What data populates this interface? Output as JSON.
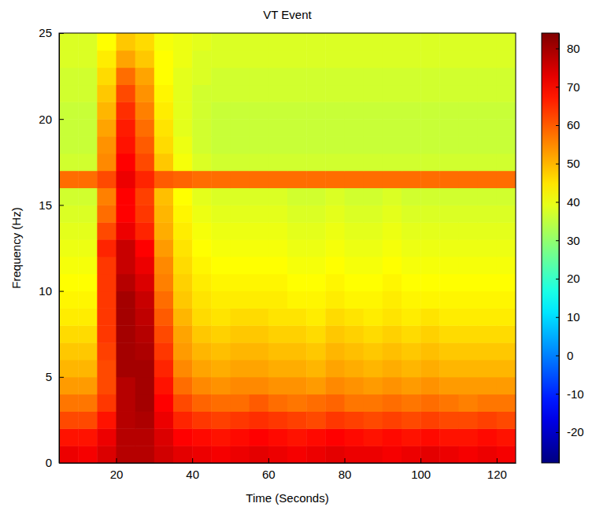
{
  "chart_data": {
    "type": "heatmap",
    "title": "VT Event",
    "x_label": "Time (Seconds)",
    "y_label": "Frequency (Hz)",
    "xlim": [
      5,
      125
    ],
    "ylim": [
      0,
      25
    ],
    "xticks": [
      20,
      40,
      60,
      80,
      100,
      120
    ],
    "yticks": [
      0,
      5,
      10,
      15,
      20,
      25
    ],
    "x": [
      7.5,
      12.5,
      17.5,
      22.5,
      27.5,
      32.5,
      37.5,
      42.5,
      47.5,
      52.5,
      57.5,
      62.5,
      67.5,
      72.5,
      77.5,
      82.5,
      87.5,
      92.5,
      97.5,
      102.5,
      107.5,
      112.5,
      117.5,
      122.5
    ],
    "y": [
      0.5,
      1.5,
      2.5,
      3.5,
      4.5,
      5.5,
      6.5,
      7.5,
      8.5,
      9.5,
      10.5,
      11.5,
      12.5,
      13.5,
      14.5,
      15.5,
      16.5,
      17.5,
      18.5,
      19.5,
      20.5,
      21.5,
      22.5,
      23.5,
      24.5
    ],
    "z": [
      [
        72,
        71,
        74,
        78,
        78,
        75,
        73,
        72,
        71,
        72,
        73,
        72,
        71,
        72,
        73,
        72,
        72,
        71,
        72,
        73,
        72,
        71,
        72,
        71
      ],
      [
        68,
        68,
        72,
        78,
        78,
        74,
        70,
        69,
        68,
        69,
        70,
        69,
        68,
        69,
        70,
        69,
        68,
        69,
        68,
        69,
        68,
        68,
        69,
        68
      ],
      [
        62,
        62,
        68,
        78,
        79,
        72,
        66,
        64,
        63,
        64,
        65,
        64,
        63,
        62,
        64,
        63,
        62,
        63,
        62,
        63,
        62,
        62,
        63,
        62
      ],
      [
        57,
        57,
        64,
        78,
        80,
        70,
        62,
        59,
        58,
        58,
        60,
        58,
        57,
        58,
        59,
        57,
        57,
        58,
        57,
        58,
        57,
        56,
        57,
        57
      ],
      [
        53,
        53,
        62,
        78,
        80,
        68,
        58,
        55,
        54,
        55,
        55,
        54,
        54,
        53,
        55,
        54,
        53,
        54,
        53,
        54,
        53,
        53,
        53,
        53
      ],
      [
        50,
        50,
        62,
        80,
        80,
        66,
        55,
        52,
        51,
        52,
        52,
        51,
        51,
        50,
        52,
        51,
        50,
        51,
        50,
        51,
        50,
        50,
        50,
        50
      ],
      [
        48,
        48,
        63,
        80,
        79,
        64,
        53,
        50,
        49,
        50,
        50,
        49,
        49,
        48,
        50,
        49,
        48,
        49,
        48,
        49,
        48,
        48,
        48,
        48
      ],
      [
        46,
        46,
        64,
        80,
        78,
        62,
        52,
        48,
        47,
        48,
        48,
        47,
        47,
        46,
        48,
        47,
        46,
        47,
        46,
        47,
        46,
        46,
        46,
        46
      ],
      [
        44,
        44,
        64,
        80,
        77,
        60,
        50,
        46,
        45,
        46,
        46,
        45,
        45,
        44,
        46,
        45,
        44,
        45,
        44,
        45,
        44,
        44,
        44,
        44
      ],
      [
        43,
        43,
        64,
        80,
        76,
        58,
        48,
        45,
        44,
        44,
        44,
        44,
        43,
        43,
        44,
        43,
        43,
        44,
        43,
        43,
        43,
        43,
        43,
        43
      ],
      [
        42,
        42,
        64,
        78,
        74,
        56,
        47,
        44,
        43,
        43,
        43,
        43,
        42,
        42,
        43,
        42,
        42,
        43,
        42,
        42,
        42,
        42,
        42,
        42
      ],
      [
        41,
        41,
        64,
        76,
        72,
        55,
        46,
        43,
        42,
        42,
        42,
        42,
        41,
        41,
        42,
        41,
        41,
        42,
        41,
        41,
        41,
        41,
        41,
        41
      ],
      [
        40,
        40,
        66,
        76,
        70,
        53,
        45,
        42,
        41,
        41,
        41,
        41,
        40,
        40,
        41,
        40,
        40,
        41,
        40,
        40,
        40,
        40,
        40,
        40
      ],
      [
        39,
        39,
        62,
        72,
        66,
        51,
        44,
        41,
        40,
        40,
        40,
        40,
        39,
        39,
        40,
        39,
        39,
        40,
        39,
        39,
        39,
        39,
        39,
        39
      ],
      [
        38,
        38,
        58,
        70,
        64,
        50,
        43,
        40,
        39,
        39,
        39,
        39,
        38,
        38,
        39,
        38,
        38,
        39,
        38,
        38,
        38,
        38,
        38,
        38
      ],
      [
        37,
        37,
        56,
        70,
        63,
        49,
        42,
        39,
        38,
        38,
        38,
        38,
        37,
        37,
        38,
        37,
        37,
        38,
        37,
        37,
        37,
        37,
        37,
        37
      ],
      [
        58,
        58,
        62,
        72,
        66,
        60,
        59,
        58,
        58,
        58,
        58,
        58,
        58,
        58,
        58,
        58,
        58,
        58,
        58,
        58,
        58,
        58,
        58,
        58
      ],
      [
        37,
        37,
        55,
        70,
        62,
        48,
        41,
        38,
        37,
        37,
        37,
        37,
        37,
        37,
        37,
        37,
        37,
        37,
        37,
        37,
        37,
        37,
        37,
        37
      ],
      [
        36,
        36,
        54,
        68,
        60,
        46,
        40,
        37,
        36,
        36,
        36,
        36,
        36,
        36,
        36,
        36,
        36,
        36,
        36,
        36,
        36,
        36,
        36,
        36
      ],
      [
        36,
        36,
        52,
        67,
        58,
        45,
        39,
        37,
        36,
        36,
        36,
        36,
        36,
        36,
        36,
        36,
        36,
        36,
        36,
        36,
        36,
        36,
        36,
        36
      ],
      [
        36,
        36,
        50,
        65,
        56,
        44,
        39,
        37,
        36,
        36,
        36,
        36,
        36,
        36,
        36,
        36,
        36,
        36,
        36,
        36,
        36,
        36,
        36,
        36
      ],
      [
        37,
        37,
        48,
        62,
        54,
        43,
        39,
        37,
        37,
        37,
        37,
        37,
        37,
        37,
        37,
        37,
        37,
        37,
        37,
        37,
        37,
        37,
        37,
        37
      ],
      [
        37,
        37,
        46,
        58,
        52,
        42,
        39,
        38,
        37,
        37,
        37,
        37,
        37,
        37,
        37,
        37,
        37,
        37,
        37,
        37,
        37,
        37,
        37,
        37
      ],
      [
        38,
        38,
        44,
        52,
        48,
        42,
        40,
        38,
        38,
        38,
        38,
        38,
        38,
        38,
        38,
        38,
        38,
        38,
        38,
        38,
        38,
        38,
        38,
        38
      ],
      [
        38,
        38,
        42,
        48,
        46,
        41,
        40,
        39,
        38,
        38,
        38,
        38,
        38,
        38,
        38,
        38,
        38,
        38,
        38,
        38,
        38,
        38,
        38,
        38
      ]
    ],
    "colorbar_range": [
      -28,
      84
    ],
    "colorbar_ticks": [
      -20,
      -10,
      0,
      10,
      20,
      30,
      40,
      50,
      60,
      70,
      80
    ]
  }
}
